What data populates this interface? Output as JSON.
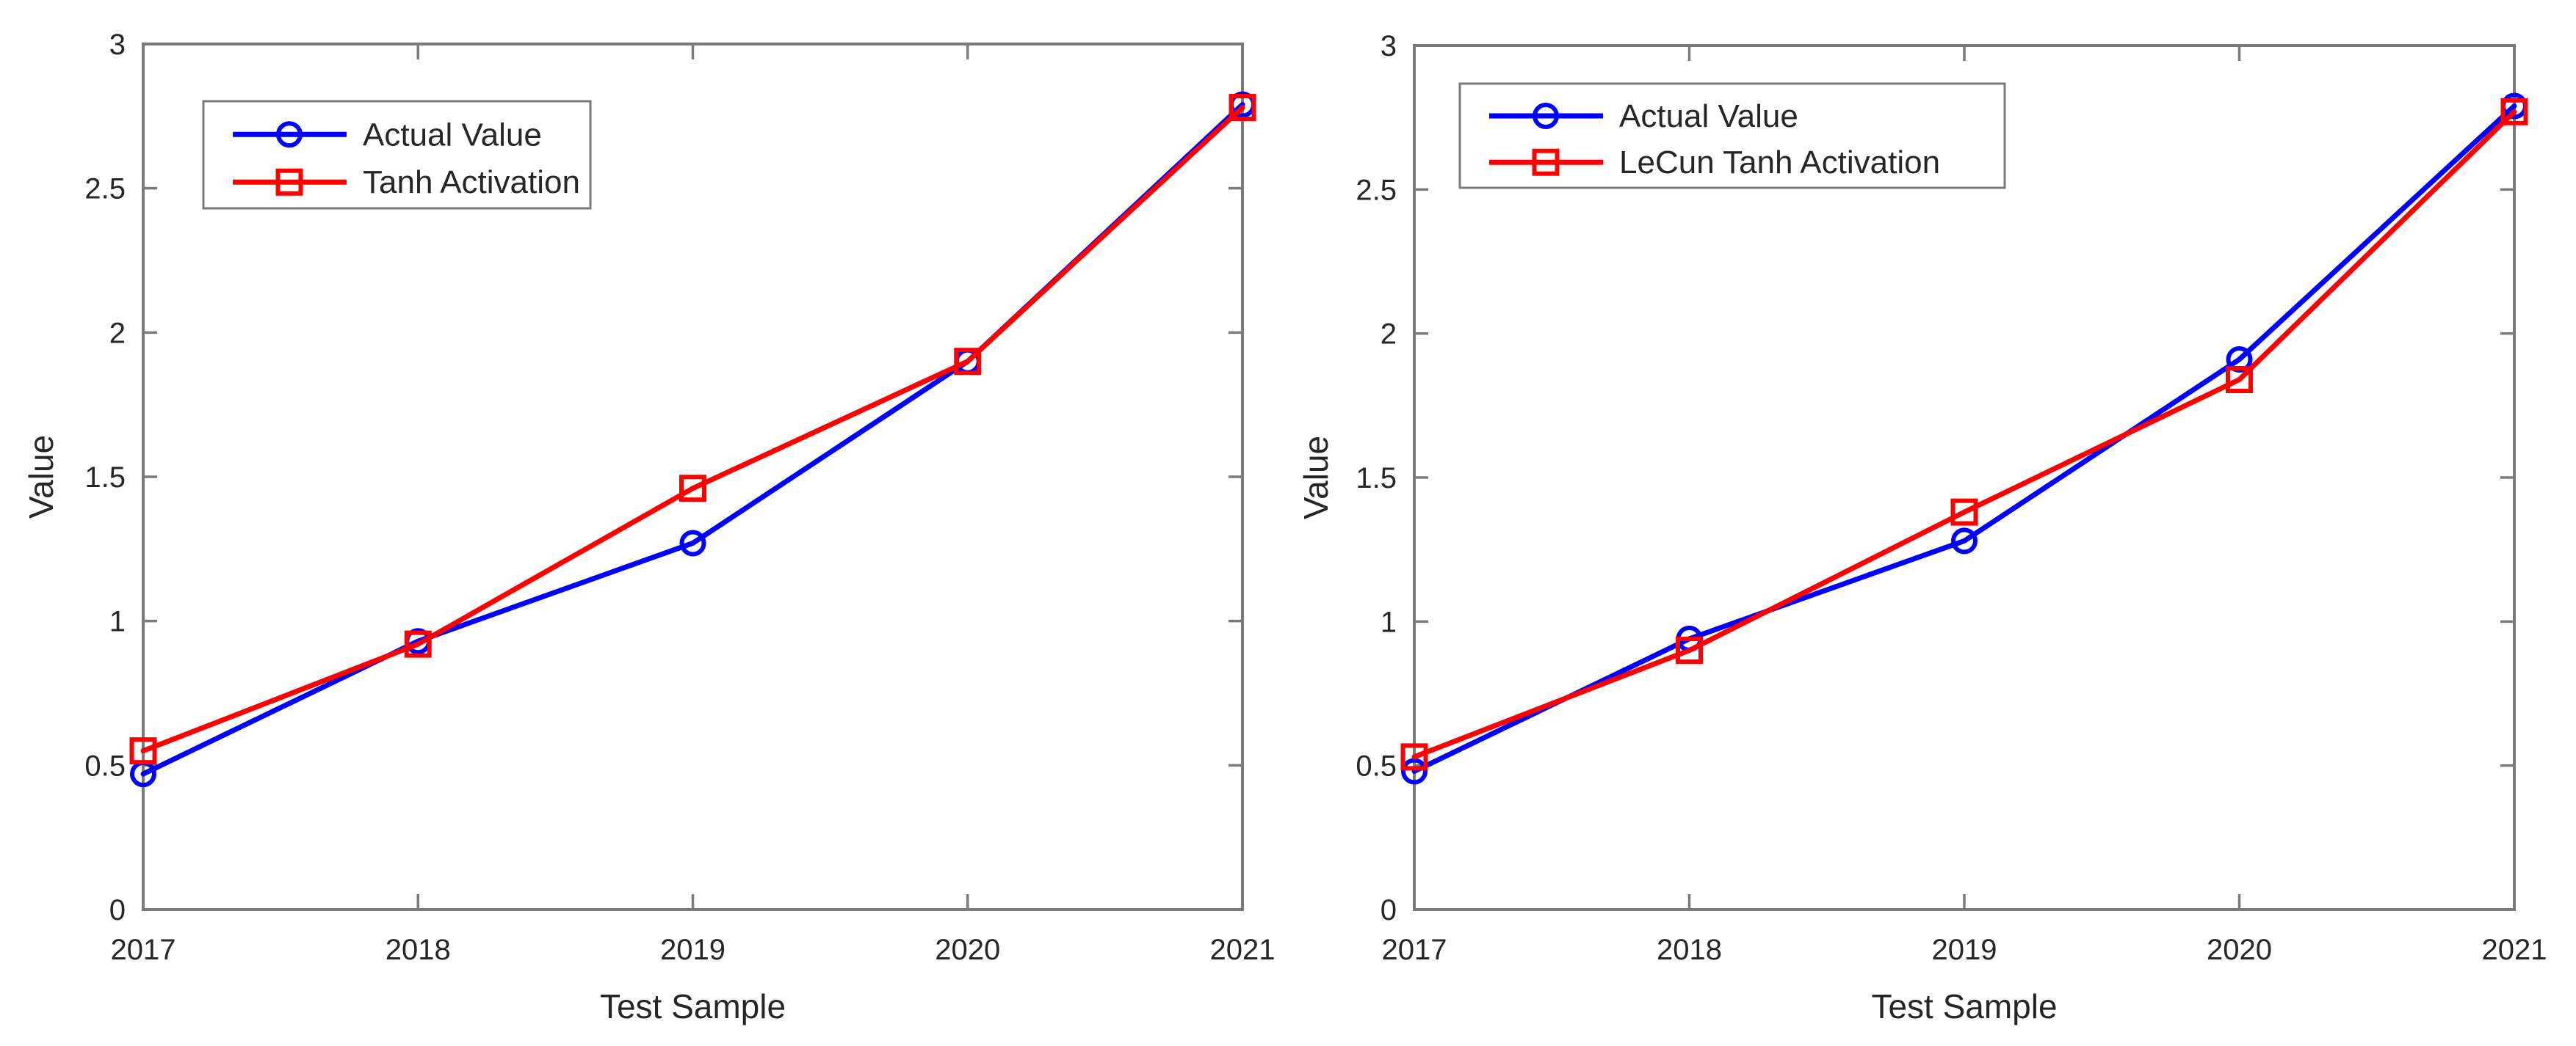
{
  "figure": {
    "background": "#ffffff",
    "axis_color": "#7a7a7a",
    "text_color": "#262626"
  },
  "chart_data": [
    {
      "type": "line",
      "title": "",
      "xlabel": "Test Sample",
      "ylabel": "Value",
      "x": [
        2017,
        2018,
        2019,
        2020,
        2021
      ],
      "x_tick_labels": [
        "2017",
        "2018",
        "2019",
        "2020",
        "2021"
      ],
      "y_tick_values": [
        0,
        0.5,
        1,
        1.5,
        2,
        2.5,
        3
      ],
      "y_tick_labels": [
        "0",
        "0.5",
        "1",
        "1.5",
        "2",
        "2.5",
        "3"
      ],
      "ylim": [
        0,
        3
      ],
      "grid": false,
      "legend_position": "top-left",
      "series": [
        {
          "name": "Actual Value",
          "color": "#0000ff",
          "marker": "circle",
          "values": [
            0.47,
            0.93,
            1.27,
            1.9,
            2.79
          ]
        },
        {
          "name": "Tanh Activation",
          "color": "#ff0000",
          "marker": "square",
          "values": [
            0.55,
            0.92,
            1.46,
            1.9,
            2.78
          ]
        }
      ]
    },
    {
      "type": "line",
      "title": "",
      "xlabel": "Test Sample",
      "ylabel": "Value",
      "x": [
        2017,
        2018,
        2019,
        2020,
        2021
      ],
      "x_tick_labels": [
        "2017",
        "2018",
        "2019",
        "2020",
        "2021"
      ],
      "y_tick_values": [
        0,
        0.5,
        1,
        1.5,
        2,
        2.5,
        3
      ],
      "y_tick_labels": [
        "0",
        "0.5",
        "1",
        "1.5",
        "2",
        "2.5",
        "3"
      ],
      "ylim": [
        0,
        3
      ],
      "grid": false,
      "legend_position": "top-left",
      "series": [
        {
          "name": "Actual Value",
          "color": "#0000ff",
          "marker": "circle",
          "values": [
            0.48,
            0.94,
            1.28,
            1.91,
            2.79
          ]
        },
        {
          "name": "LeCun Tanh Activation",
          "color": "#ff0000",
          "marker": "square",
          "values": [
            0.53,
            0.9,
            1.38,
            1.84,
            2.77
          ]
        }
      ]
    }
  ]
}
